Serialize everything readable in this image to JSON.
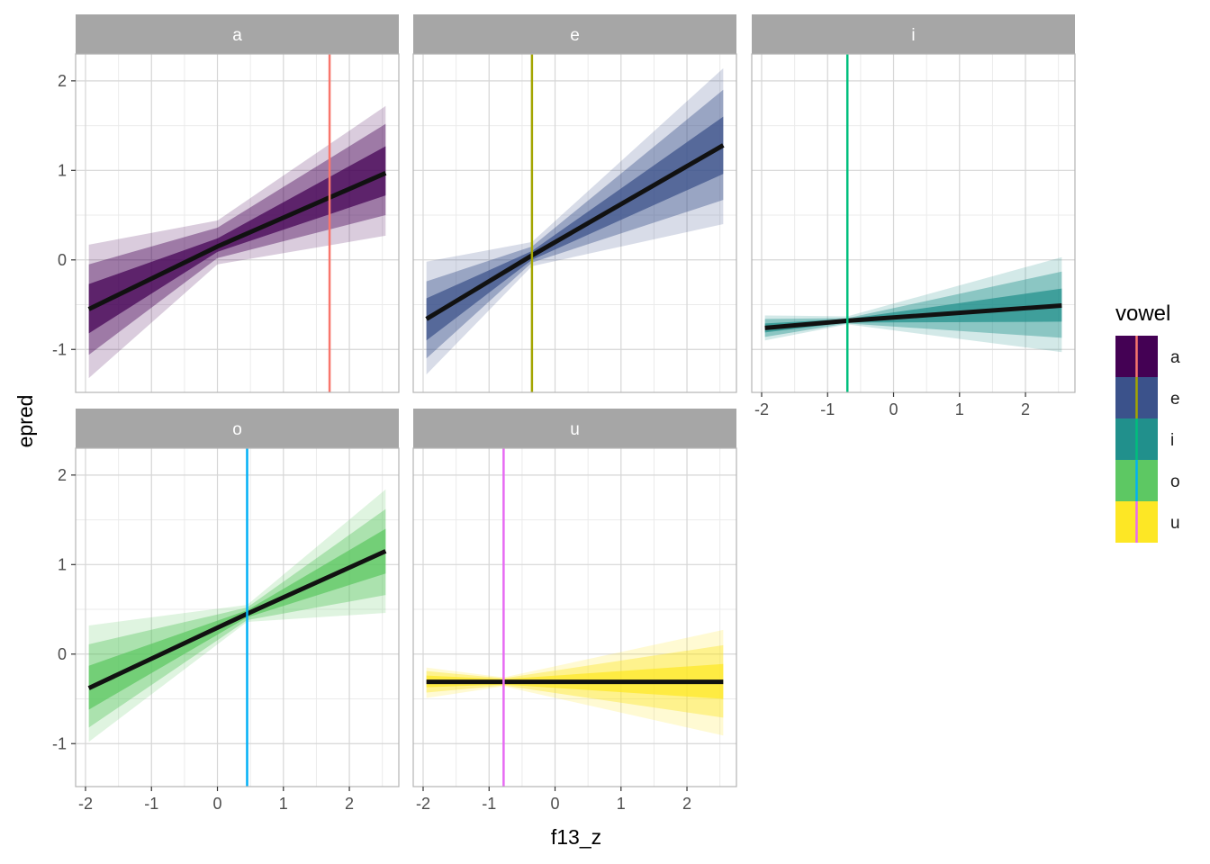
{
  "chart_data": {
    "type": "line",
    "title": "",
    "xlabel": "f13_z",
    "ylabel": "epred",
    "xlim": [
      -2.15,
      2.75
    ],
    "ylim": [
      -1.48,
      2.3
    ],
    "x_ticks": [
      -2,
      -1,
      0,
      1,
      2
    ],
    "y_ticks": [
      -1,
      0,
      1,
      2
    ],
    "grid": true,
    "facet_by": "vowel",
    "legend": {
      "title": "vowel",
      "position": "right",
      "entries": [
        "a",
        "e",
        "i",
        "o",
        "u"
      ]
    },
    "colors": {
      "a": {
        "fill": "#440154",
        "vline": "#F8766D"
      },
      "e": {
        "fill": "#3B528B",
        "vline": "#A3A500"
      },
      "i": {
        "fill": "#21908C",
        "vline": "#00BF7D"
      },
      "o": {
        "fill": "#5DC863",
        "vline": "#00B0F6"
      },
      "u": {
        "fill": "#FDE725",
        "vline": "#E76BF3"
      }
    },
    "panels": [
      {
        "vowel": "a",
        "mean_x": 1.7,
        "x": [
          -1.95,
          0,
          2.55
        ],
        "y": [
          -0.55,
          0.15,
          0.97
        ],
        "ribbons": [
          {
            "level": 0.95,
            "lower": [
              -1.32,
              -0.05,
              0.27
            ],
            "upper": [
              0.17,
              0.44,
              1.72
            ]
          },
          {
            "level": 0.8,
            "lower": [
              -1.06,
              0.02,
              0.5
            ],
            "upper": [
              -0.05,
              0.36,
              1.52
            ]
          },
          {
            "level": 0.5,
            "lower": [
              -0.82,
              0.09,
              0.72
            ],
            "upper": [
              -0.27,
              0.24,
              1.27
            ]
          }
        ]
      },
      {
        "vowel": "e",
        "mean_x": -0.35,
        "x": [
          -1.95,
          -0.35,
          2.55
        ],
        "y": [
          -0.66,
          0.05,
          1.28
        ],
        "ribbons": [
          {
            "level": 0.95,
            "lower": [
              -1.28,
              -0.07,
              0.4
            ],
            "upper": [
              -0.02,
              0.2,
              2.14
            ]
          },
          {
            "level": 0.8,
            "lower": [
              -1.1,
              -0.03,
              0.67
            ],
            "upper": [
              -0.24,
              0.15,
              1.9
            ]
          },
          {
            "level": 0.5,
            "lower": [
              -0.9,
              0.0,
              0.96
            ],
            "upper": [
              -0.43,
              0.1,
              1.6
            ]
          }
        ]
      },
      {
        "vowel": "i",
        "mean_x": -0.7,
        "x": [
          -1.95,
          -0.7,
          2.55
        ],
        "y": [
          -0.76,
          -0.68,
          -0.51
        ],
        "ribbons": [
          {
            "level": 0.95,
            "lower": [
              -0.9,
              -0.72,
              -1.03
            ],
            "upper": [
              -0.62,
              -0.63,
              0.03
            ]
          },
          {
            "level": 0.8,
            "lower": [
              -0.86,
              -0.71,
              -0.87
            ],
            "upper": [
              -0.66,
              -0.65,
              -0.13
            ]
          },
          {
            "level": 0.5,
            "lower": [
              -0.81,
              -0.7,
              -0.69
            ],
            "upper": [
              -0.71,
              -0.66,
              -0.32
            ]
          }
        ]
      },
      {
        "vowel": "o",
        "mean_x": 0.45,
        "x": [
          -1.95,
          0.45,
          2.55
        ],
        "y": [
          -0.38,
          0.45,
          1.15
        ],
        "ribbons": [
          {
            "level": 0.95,
            "lower": [
              -0.98,
              0.36,
              0.46
            ],
            "upper": [
              0.32,
              0.55,
              1.84
            ]
          },
          {
            "level": 0.8,
            "lower": [
              -0.82,
              0.38,
              0.66
            ],
            "upper": [
              0.11,
              0.52,
              1.62
            ]
          },
          {
            "level": 0.5,
            "lower": [
              -0.62,
              0.41,
              0.9
            ],
            "upper": [
              -0.13,
              0.49,
              1.4
            ]
          }
        ]
      },
      {
        "vowel": "u",
        "mean_x": -0.78,
        "x": [
          -1.95,
          -0.78,
          2.55
        ],
        "y": [
          -0.31,
          -0.31,
          -0.31
        ],
        "ribbons": [
          {
            "level": 0.95,
            "lower": [
              -0.49,
              -0.36,
              -0.91
            ],
            "upper": [
              -0.15,
              -0.26,
              0.27
            ]
          },
          {
            "level": 0.8,
            "lower": [
              -0.43,
              -0.35,
              -0.71
            ],
            "upper": [
              -0.19,
              -0.27,
              0.1
            ]
          },
          {
            "level": 0.5,
            "lower": [
              -0.37,
              -0.34,
              -0.5
            ],
            "upper": [
              -0.24,
              -0.28,
              -0.11
            ]
          }
        ]
      }
    ]
  }
}
